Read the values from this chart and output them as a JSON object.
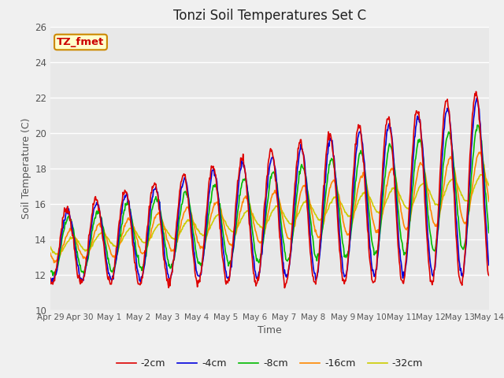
{
  "title": "Tonzi Soil Temperatures Set C",
  "xlabel": "Time",
  "ylabel": "Soil Temperature (C)",
  "ylim": [
    10,
    26
  ],
  "fig_facecolor": "#f0f0f0",
  "ax_facecolor": "#e8e8e8",
  "annotation_text": "TZ_fmet",
  "annotation_bg": "#ffffcc",
  "annotation_border": "#cc8800",
  "annotation_text_color": "#cc0000",
  "series_colors": {
    "-2cm": "#dd0000",
    "-4cm": "#0000dd",
    "-8cm": "#00bb00",
    "-16cm": "#ff8800",
    "-32cm": "#cccc00"
  },
  "series_linewidth": 1.2,
  "tick_labels": [
    "Apr 29",
    "Apr 30",
    "May 1",
    "May 2",
    "May 3",
    "May 4",
    "May 5",
    "May 6",
    "May 7",
    "May 8",
    "May 9",
    "May 10",
    "May 11",
    "May 12",
    "May 13",
    "May 14"
  ],
  "tick_positions": [
    0,
    1,
    2,
    3,
    4,
    5,
    6,
    7,
    8,
    9,
    10,
    11,
    12,
    13,
    14,
    15
  ],
  "yticks": [
    10,
    12,
    14,
    16,
    18,
    20,
    22,
    24,
    26
  ]
}
